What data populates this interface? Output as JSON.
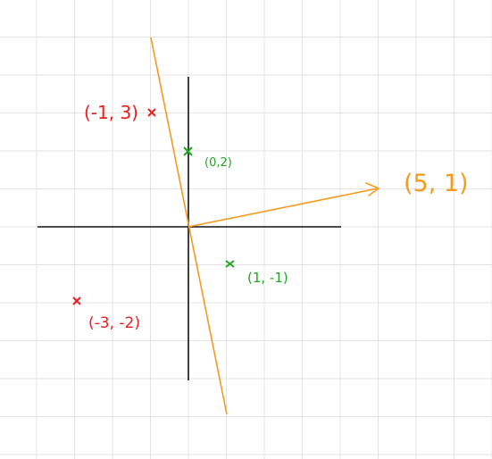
{
  "colors": {
    "grid": "#e3e3e3",
    "axes": "#111111",
    "line": "#f59a1c",
    "red": "#ef1c1c",
    "green": "#1fa71f"
  },
  "points": [
    {
      "label": "(-1, 3)",
      "x": -1,
      "y": 3,
      "color": "red"
    },
    {
      "label": "(0,2)",
      "x": 0,
      "y": 2,
      "color": "green"
    },
    {
      "label": "(1, -1)",
      "x": 1,
      "y": -1,
      "color": "green"
    },
    {
      "label": "(-3, -2)",
      "x": -3,
      "y": -2,
      "color": "red"
    }
  ],
  "vector": {
    "label": "(5, 1)",
    "x": 5,
    "y": 1
  },
  "separating_line": {
    "direction": [
      -1,
      5
    ]
  }
}
